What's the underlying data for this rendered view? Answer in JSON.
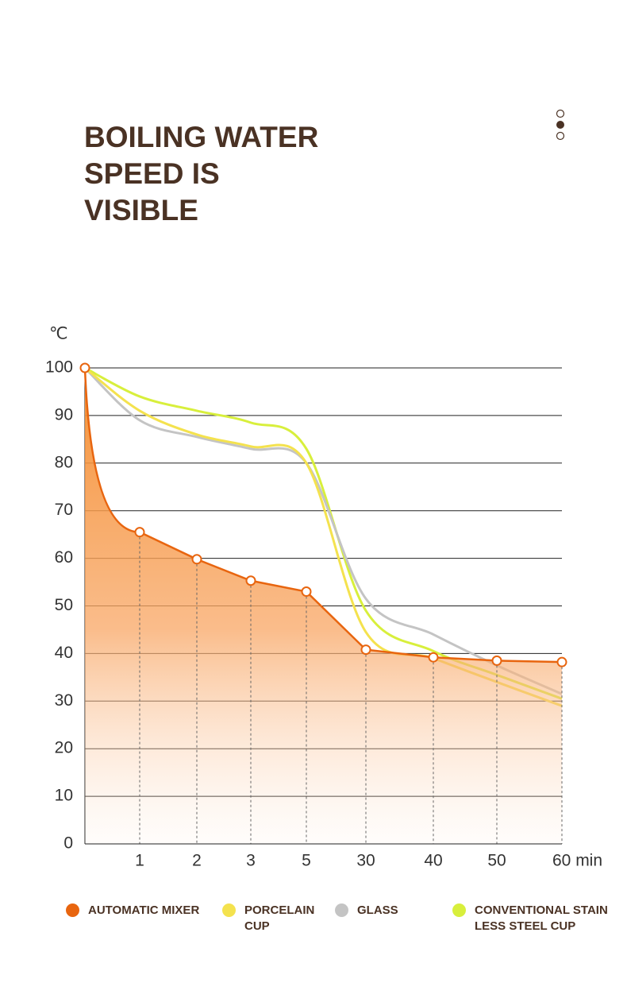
{
  "chart_data": {
    "type": "line",
    "title": "BOILING WATER SPEED IS VISIBLE",
    "y_label": "℃",
    "categories": [
      null,
      "1",
      "2",
      "3",
      "5",
      "30",
      "40",
      "50",
      "60 min"
    ],
    "series": [
      {
        "name": "AUTOMATIC MIXER",
        "color": "#e8650f",
        "values": [
          100,
          65.5,
          59.8,
          55.3,
          53,
          40.8,
          39.2,
          38.5,
          38.2
        ],
        "markers": true,
        "area": true
      },
      {
        "name": "PORCELAIN CUP",
        "color": "#f4e24e",
        "values": [
          100,
          91,
          86,
          83.5,
          80,
          44.5,
          39,
          34,
          29
        ]
      },
      {
        "name": "GLASS",
        "color": "#c4c4c4",
        "values": [
          100,
          89,
          85.5,
          83,
          80,
          51.5,
          44,
          37.5,
          31.5
        ]
      },
      {
        "name": "CONVENTIONAL STAINLESS STEEL CUP",
        "color": "#d8ef3c",
        "values": [
          100,
          94,
          91,
          88.5,
          83,
          49,
          40.5,
          35.5,
          30.5
        ]
      }
    ],
    "ylim": [
      0,
      100
    ],
    "yticks": [
      0,
      10,
      20,
      30,
      40,
      50,
      60,
      70,
      80,
      90,
      100
    ],
    "grid": true
  }
}
